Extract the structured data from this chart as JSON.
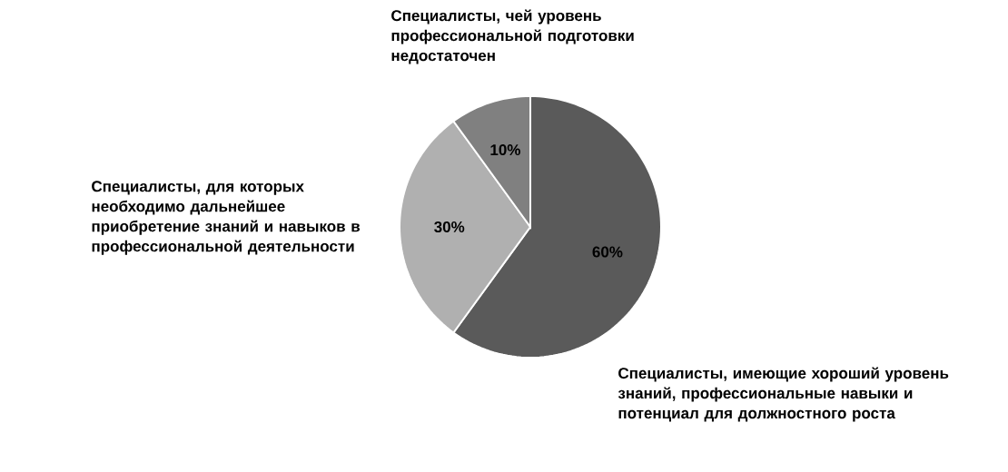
{
  "chart_data": {
    "type": "pie",
    "categories": [
      "Специалисты,  имеющие хороший уровень знаний, профессиональные навыки и потенциал для должностного роста",
      "Специалисты, для которых необходимо дальнейшее приобретение знаний и навыков в профессиональной деятельности",
      "Специалисты, чей уровень  профессиональной подготовки недостаточен"
    ],
    "values": [
      60,
      30,
      10
    ],
    "value_labels": [
      "60%",
      "30%",
      "10%"
    ],
    "colors": [
      "#5a5a5a",
      "#b0b0b0",
      "#808080"
    ]
  }
}
